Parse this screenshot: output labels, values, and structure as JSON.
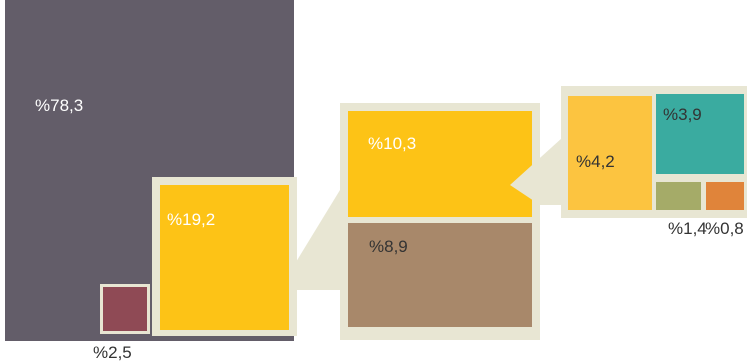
{
  "chart_data": {
    "type": "treemap",
    "title": "",
    "colors": {
      "root": "#635d69",
      "small": "#8f4a55",
      "level1": "#fdc316",
      "level2_brown": "#a8886a",
      "level3_light": "#fcc440",
      "teal": "#3aaba0",
      "olive": "#a5ab68",
      "orange": "#e0843a",
      "frame": "#e8e6d3",
      "text": "#ffffff",
      "text_dark": "#333333"
    },
    "levels": [
      {
        "name": "level-0",
        "items": [
          {
            "key": "a",
            "label": "%78,3",
            "value": 78.3,
            "color": "#635d69"
          },
          {
            "key": "b",
            "label": "%2,5",
            "value": 2.5,
            "color": "#8f4a55"
          },
          {
            "key": "c",
            "label": "%19,2",
            "value": 19.2,
            "color": "#fdc316",
            "expanded": true
          }
        ]
      },
      {
        "name": "level-1",
        "parent": "%19,2",
        "items": [
          {
            "key": "d",
            "label": "%10,3",
            "value": 10.3,
            "color": "#fdc316",
            "expanded": true
          },
          {
            "key": "e",
            "label": "%8,9",
            "value": 8.9,
            "color": "#a8886a"
          }
        ]
      },
      {
        "name": "level-2",
        "parent": "%10,3",
        "items": [
          {
            "key": "f",
            "label": "%4,2",
            "value": 4.2,
            "color": "#fcc440"
          },
          {
            "key": "g",
            "label": "%3,9",
            "value": 3.9,
            "color": "#3aaba0"
          },
          {
            "key": "h",
            "label": "%1,4",
            "value": 1.4,
            "color": "#a5ab68"
          },
          {
            "key": "i",
            "label": "%0,8",
            "value": 0.8,
            "color": "#e0843a"
          }
        ]
      }
    ]
  }
}
